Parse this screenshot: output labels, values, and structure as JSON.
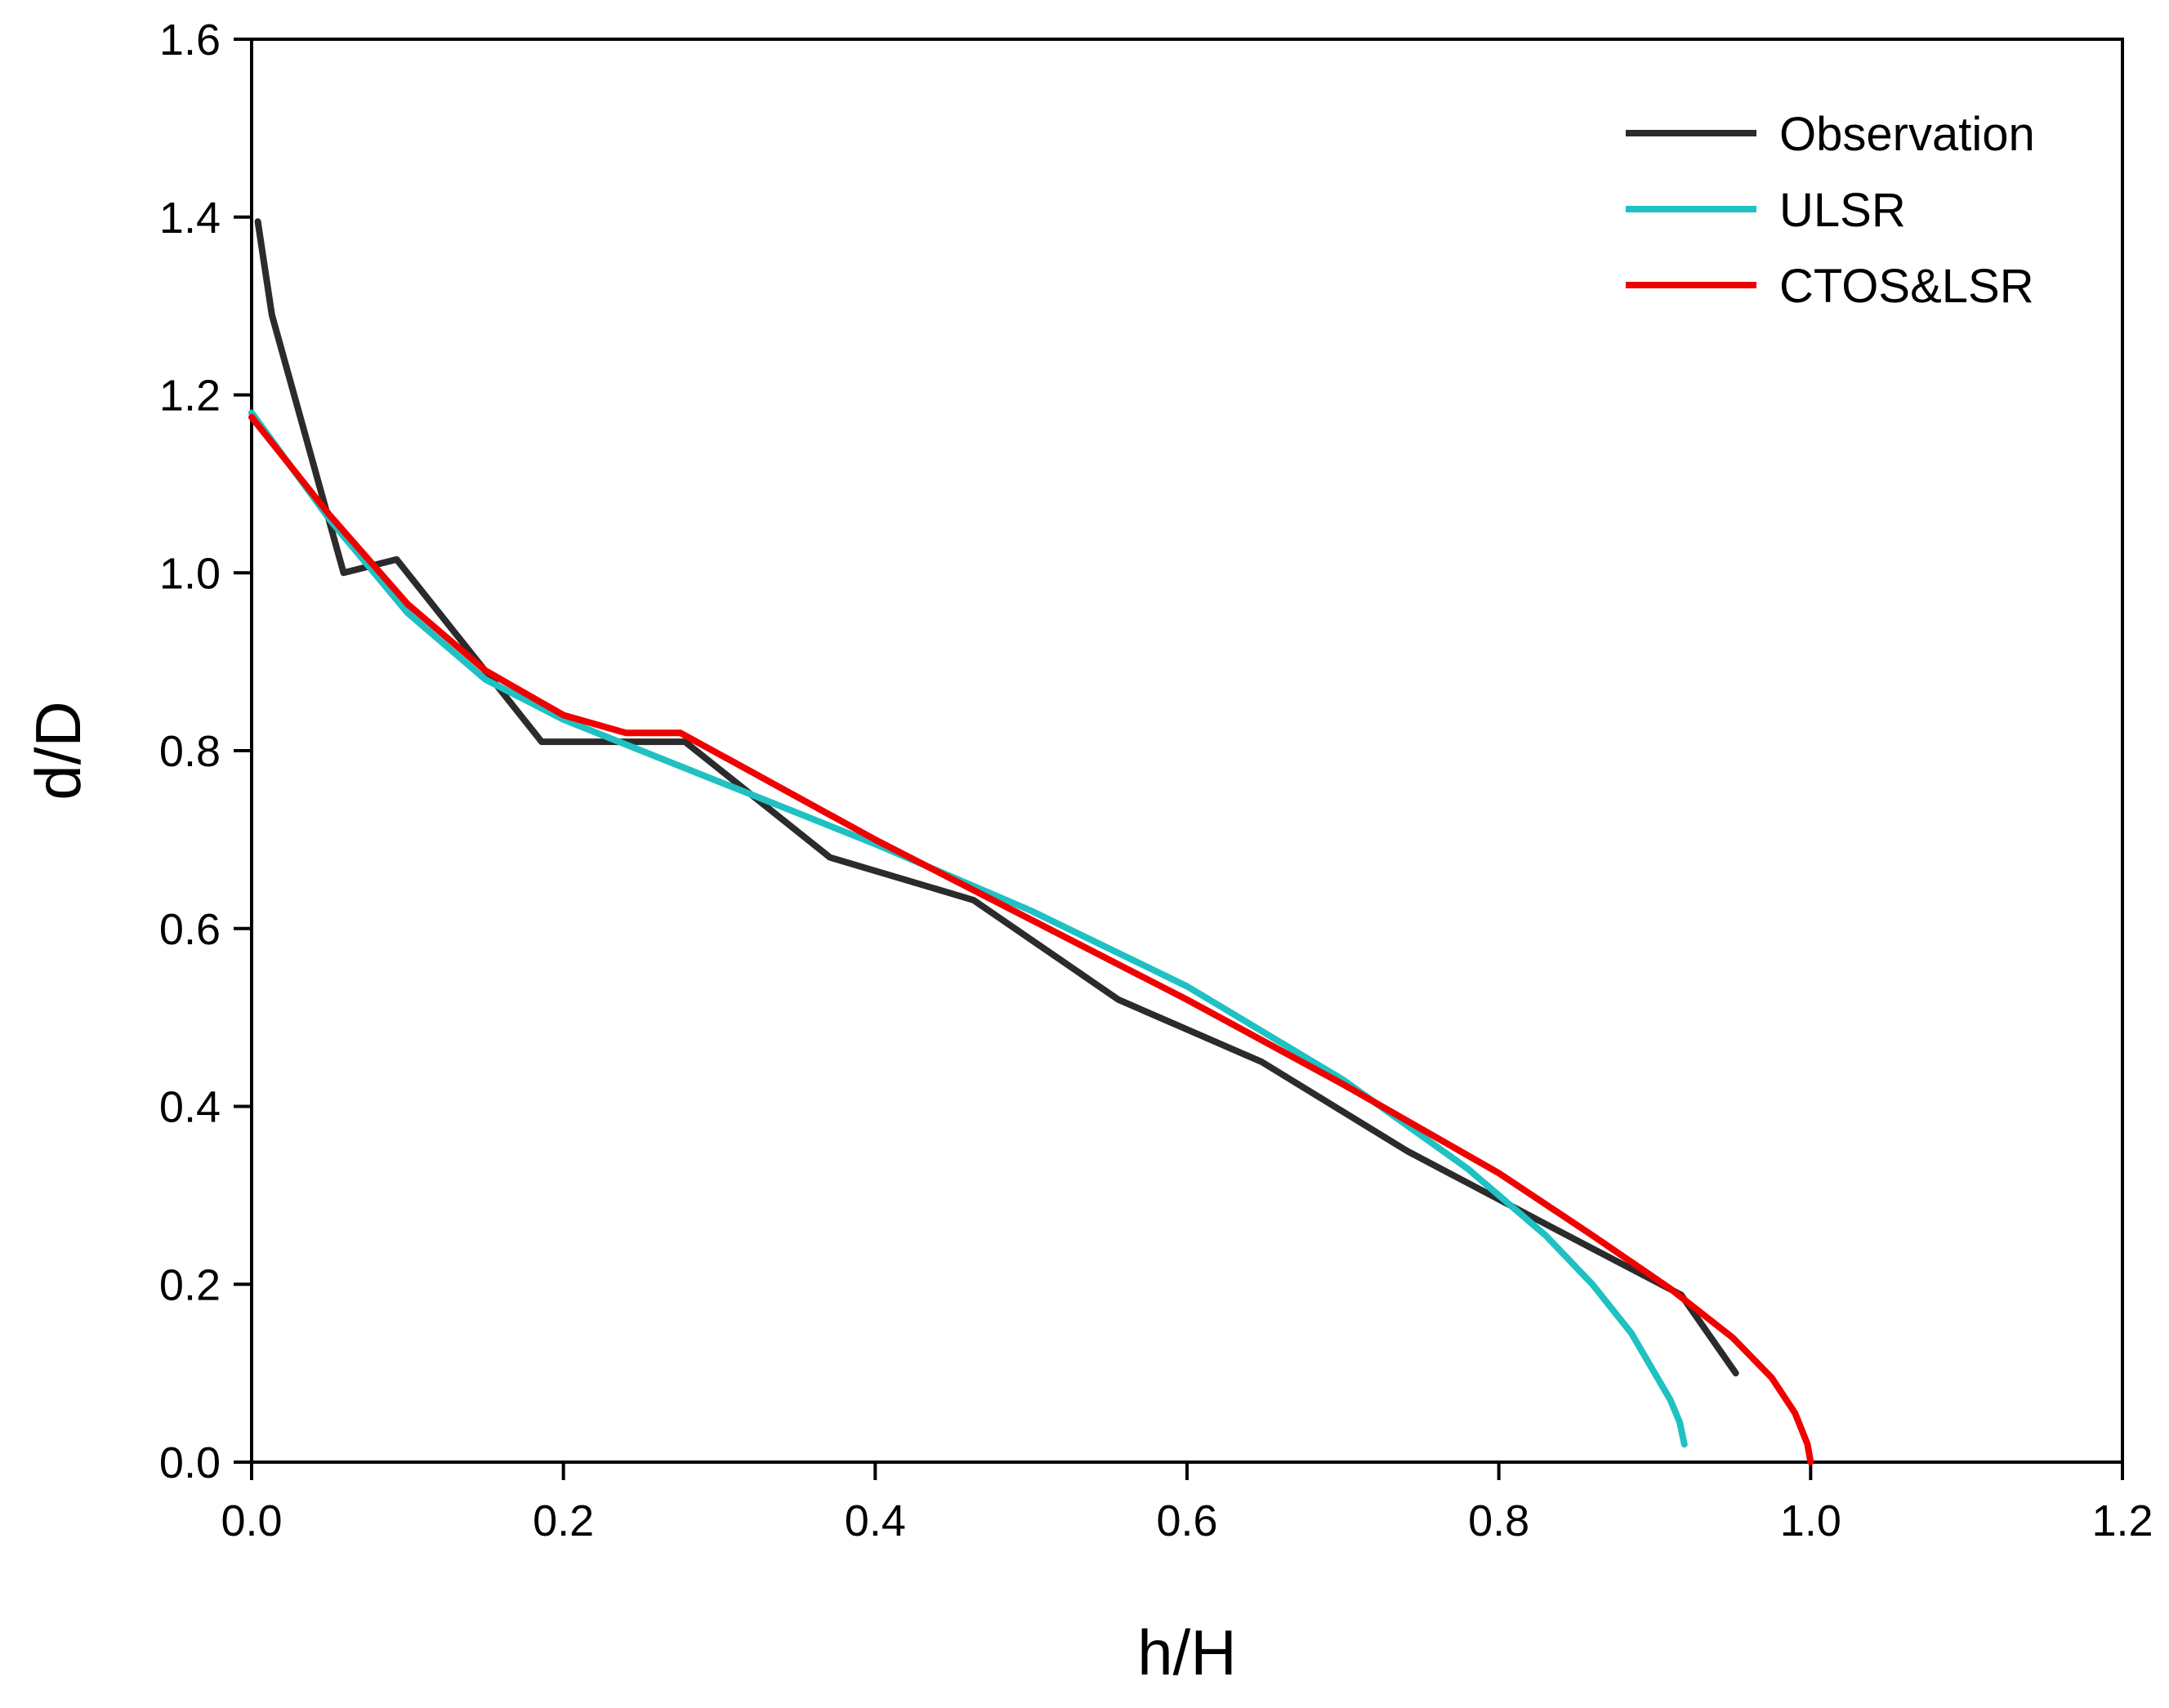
{
  "chart_data": {
    "type": "line",
    "title": "",
    "xlabel": "h/H",
    "ylabel": "d/D",
    "xlim": [
      0.0,
      1.2
    ],
    "ylim": [
      0.0,
      1.6
    ],
    "x_ticks": [
      0.0,
      0.2,
      0.4,
      0.6,
      0.8,
      1.0,
      1.2
    ],
    "x_tick_labels": [
      "0.0",
      "0.2",
      "0.4",
      "0.6",
      "0.8",
      "1.0",
      "1.2"
    ],
    "y_ticks": [
      0.0,
      0.2,
      0.4,
      0.6,
      0.8,
      1.0,
      1.2,
      1.4,
      1.6
    ],
    "y_tick_labels": [
      "0.0",
      "0.2",
      "0.4",
      "0.6",
      "0.8",
      "1.0",
      "1.2",
      "1.4",
      "1.6"
    ],
    "grid": false,
    "legend_position": "top-right",
    "series": [
      {
        "name": "Observation",
        "color": "#2b2b2b",
        "x": [
          0.004,
          0.013,
          0.059,
          0.093,
          0.186,
          0.278,
          0.371,
          0.463,
          0.556,
          0.648,
          0.741,
          0.833,
          0.917,
          0.952
        ],
        "y": [
          1.395,
          1.29,
          1.0,
          1.015,
          0.81,
          0.81,
          0.68,
          0.632,
          0.52,
          0.45,
          0.35,
          0.265,
          0.188,
          0.1
        ]
      },
      {
        "name": "ULSR",
        "color": "#1fc1c3",
        "x": [
          0.0,
          0.05,
          0.1,
          0.15,
          0.2,
          0.3,
          0.4,
          0.5,
          0.6,
          0.7,
          0.78,
          0.83,
          0.86,
          0.885,
          0.9,
          0.91,
          0.916,
          0.919
        ],
        "y": [
          1.18,
          1.06,
          0.955,
          0.88,
          0.835,
          0.765,
          0.695,
          0.62,
          0.535,
          0.43,
          0.33,
          0.255,
          0.2,
          0.145,
          0.1,
          0.07,
          0.045,
          0.02
        ]
      },
      {
        "name": "CTOS&LSR",
        "color": "#f00000",
        "x": [
          0.0,
          0.05,
          0.1,
          0.15,
          0.2,
          0.24,
          0.275,
          0.4,
          0.5,
          0.6,
          0.7,
          0.8,
          0.86,
          0.91,
          0.95,
          0.975,
          0.99,
          0.998,
          1.0
        ],
        "y": [
          1.175,
          1.065,
          0.965,
          0.89,
          0.84,
          0.82,
          0.82,
          0.7,
          0.61,
          0.52,
          0.425,
          0.325,
          0.255,
          0.195,
          0.14,
          0.095,
          0.055,
          0.02,
          0.0
        ]
      }
    ]
  }
}
